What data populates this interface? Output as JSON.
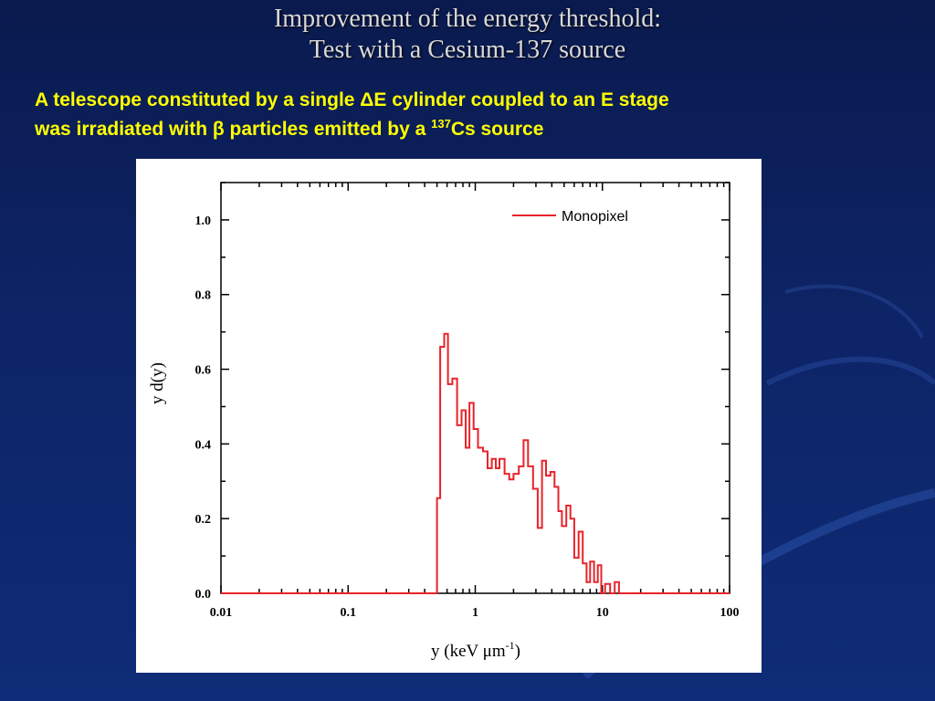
{
  "slide": {
    "title_line1": "Improvement of  the energy threshold:",
    "title_line2": "Test with a Cesium-137 source",
    "subtitle_line1": "A telescope constituted by a single ΔE cylinder coupled to an E stage",
    "subtitle_line2_a": "was irradiated  with β particles emitted by a ",
    "subtitle_line2_sup": "137",
    "subtitle_line2_b": "Cs source"
  },
  "colors": {
    "series": "#e8232a",
    "subtitle": "#ffff00",
    "title": "#d9d9d9"
  },
  "chart_data": {
    "type": "line",
    "xlabel_main": "y (keV ",
    "xlabel_mu": "μ",
    "xlabel_unit": "m",
    "xlabel_sup": "-1",
    "xlabel_end": ")",
    "ylabel": "y d(y)",
    "xscale": "log",
    "xlim": [
      0.01,
      100
    ],
    "ylim": [
      0,
      1.1
    ],
    "xticks": [
      0.01,
      0.1,
      1,
      10,
      100
    ],
    "xtick_labels": [
      "0.01",
      "0.1",
      "1",
      "10",
      "100"
    ],
    "yticks": [
      0.0,
      0.2,
      0.4,
      0.6,
      0.8,
      1.0
    ],
    "ytick_labels": [
      "0.0",
      "0.2",
      "0.4",
      "0.6",
      "0.8",
      "1.0"
    ],
    "legend_position": "top-right",
    "grid": false,
    "series": [
      {
        "name": "Monopixel",
        "step": true,
        "points": [
          [
            0.01,
            0.0
          ],
          [
            0.48,
            0.0
          ],
          [
            0.5,
            0.255
          ],
          [
            0.53,
            0.66
          ],
          [
            0.57,
            0.695
          ],
          [
            0.61,
            0.56
          ],
          [
            0.66,
            0.575
          ],
          [
            0.72,
            0.45
          ],
          [
            0.78,
            0.49
          ],
          [
            0.84,
            0.39
          ],
          [
            0.9,
            0.51
          ],
          [
            0.97,
            0.44
          ],
          [
            1.05,
            0.39
          ],
          [
            1.15,
            0.38
          ],
          [
            1.25,
            0.335
          ],
          [
            1.35,
            0.36
          ],
          [
            1.45,
            0.335
          ],
          [
            1.55,
            0.36
          ],
          [
            1.7,
            0.32
          ],
          [
            1.85,
            0.305
          ],
          [
            2.0,
            0.32
          ],
          [
            2.2,
            0.34
          ],
          [
            2.4,
            0.41
          ],
          [
            2.6,
            0.34
          ],
          [
            2.85,
            0.28
          ],
          [
            3.1,
            0.175
          ],
          [
            3.35,
            0.355
          ],
          [
            3.6,
            0.315
          ],
          [
            3.9,
            0.325
          ],
          [
            4.2,
            0.285
          ],
          [
            4.5,
            0.22
          ],
          [
            4.8,
            0.18
          ],
          [
            5.2,
            0.235
          ],
          [
            5.6,
            0.2
          ],
          [
            6.0,
            0.095
          ],
          [
            6.5,
            0.165
          ],
          [
            7.0,
            0.08
          ],
          [
            7.5,
            0.03
          ],
          [
            8.0,
            0.085
          ],
          [
            8.6,
            0.03
          ],
          [
            9.2,
            0.075
          ],
          [
            9.8,
            0.0
          ],
          [
            10.5,
            0.025
          ],
          [
            11.5,
            0.0
          ],
          [
            12.5,
            0.03
          ],
          [
            13.5,
            0.0
          ],
          [
            100,
            0.0
          ]
        ]
      }
    ]
  }
}
